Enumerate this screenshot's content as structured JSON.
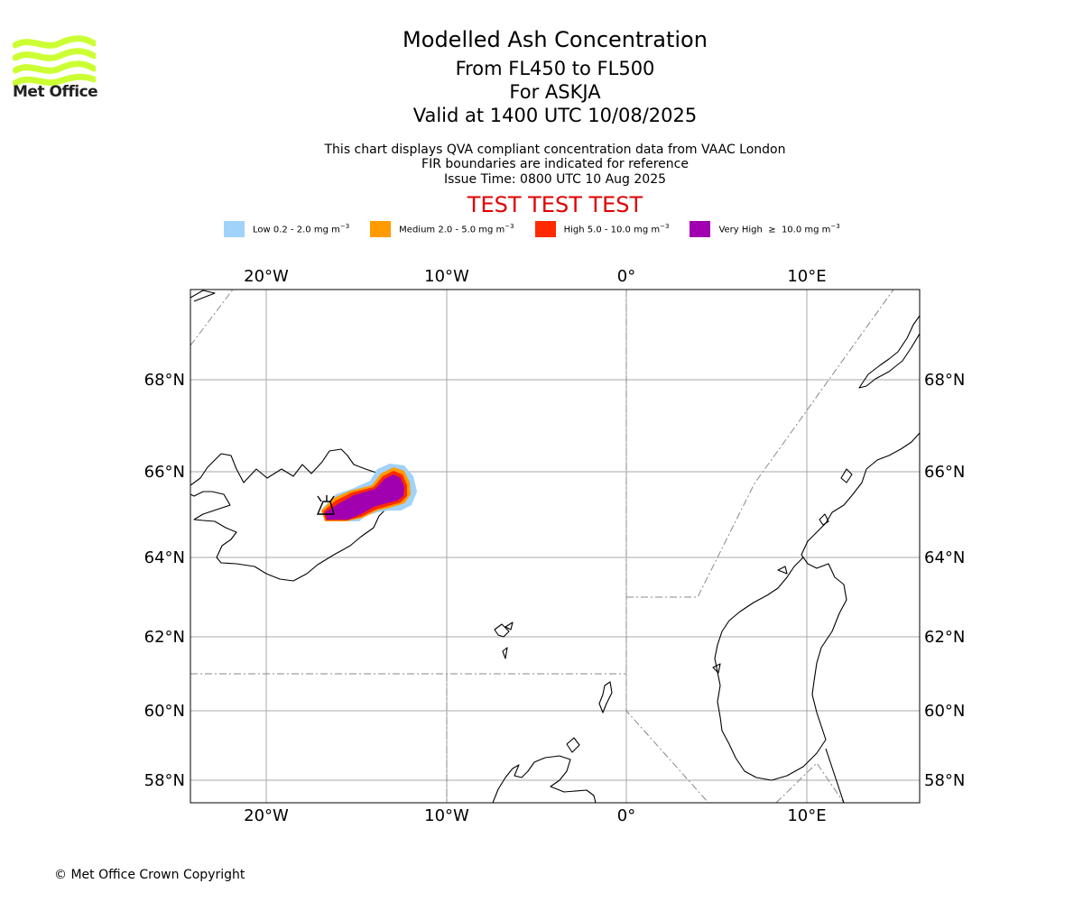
{
  "logo": {
    "text": "Met Office",
    "brand_color": "#ccff33"
  },
  "titles": {
    "main": "Modelled Ash Concentration",
    "levels": "From FL450 to FL500",
    "volcano": "For ASKJA",
    "valid": "Valid at 1400 UTC 10/08/2025"
  },
  "subtitle": {
    "line1": "This chart displays QVA compliant concentration data from VAAC London",
    "line2": "FIR boundaries are indicated for reference",
    "issue": "Issue Time: 0800 UTC 10 Aug 2025"
  },
  "banner": {
    "text": "TEST TEST TEST",
    "color": "#e00000"
  },
  "legend": [
    {
      "label": "Low 0.2 - 2.0 mg m",
      "exp": "−3",
      "color": "#a0d2fa"
    },
    {
      "label": "Medium 2.0 - 5.0 mg m",
      "exp": "−3",
      "color": "#ff9a00"
    },
    {
      "label": "High 5.0 - 10.0 mg m",
      "exp": "−3",
      "color": "#ff2a00"
    },
    {
      "label": "Very High  ≥  10.0 mg m",
      "exp": "−3",
      "color": "#a000b0"
    }
  ],
  "map": {
    "lon_ticks": [
      "20°W",
      "10°W",
      "0°",
      "10°E"
    ],
    "lat_ticks": [
      "68°N",
      "66°N",
      "64°N",
      "62°N",
      "60°N",
      "58°N"
    ],
    "gridlines": true,
    "features": [
      "coastlines",
      "FIR boundaries",
      "volcano marker: ASKJA",
      "ash concentration plume"
    ]
  },
  "copyright": "© Met Office Crown Copyright"
}
